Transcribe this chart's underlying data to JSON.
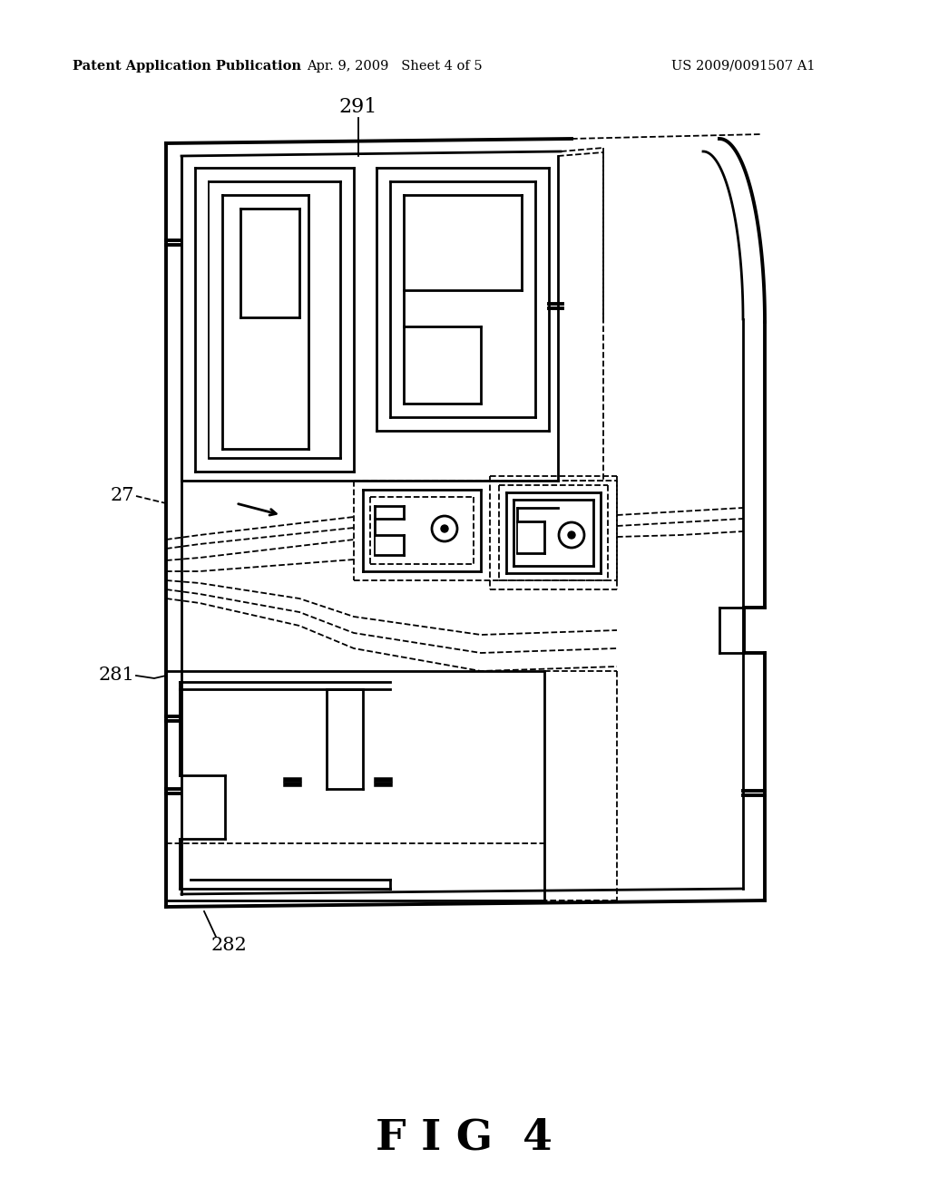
{
  "bg_color": "#ffffff",
  "line_color": "#000000",
  "header_left": "Patent Application Publication",
  "header_mid": "Apr. 9, 2009   Sheet 4 of 5",
  "header_right": "US 2009/0091507 A1",
  "fig_label": "F I G  4",
  "label_291": "291",
  "label_27": "27",
  "label_281": "281",
  "label_282": "282",
  "lw_thin": 1.3,
  "lw_med": 2.0,
  "lw_thick": 2.8
}
